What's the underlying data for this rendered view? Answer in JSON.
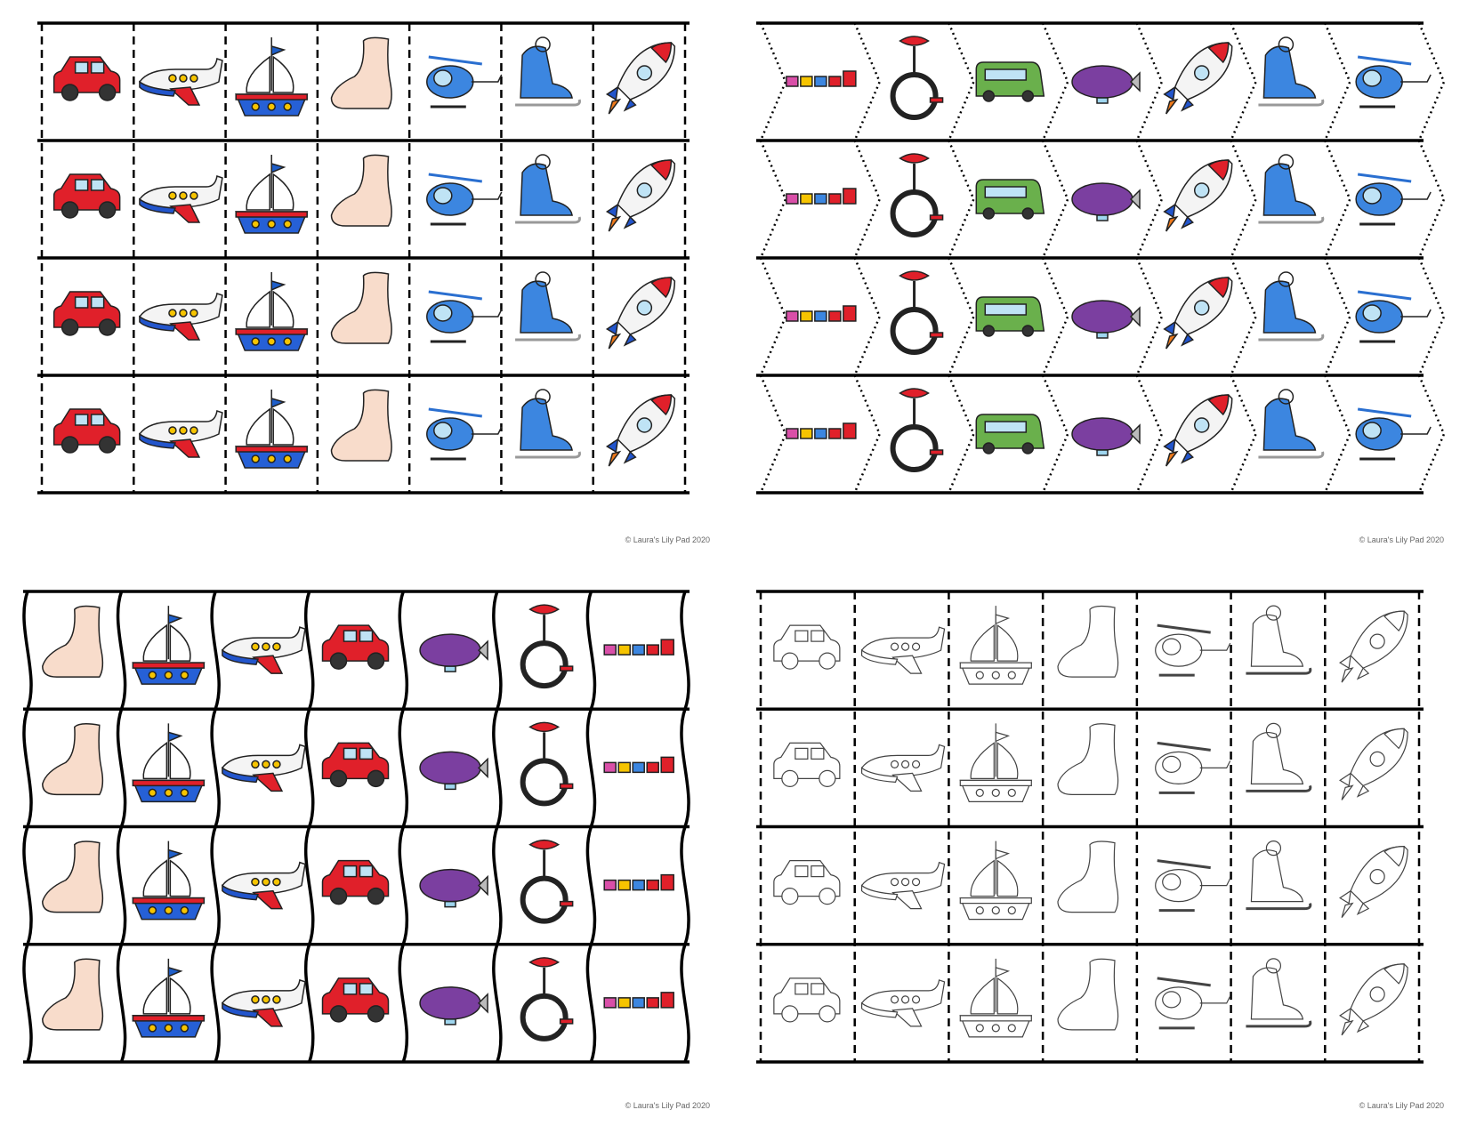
{
  "panels": [
    {
      "credit": "© Laura's Lily Pad 2020"
    },
    {
      "credit": "© Laura's Lily Pad 2020"
    },
    {
      "credit": "© Laura's Lily Pad 2020"
    },
    {
      "credit": "© Laura's Lily Pad 2020"
    }
  ]
}
